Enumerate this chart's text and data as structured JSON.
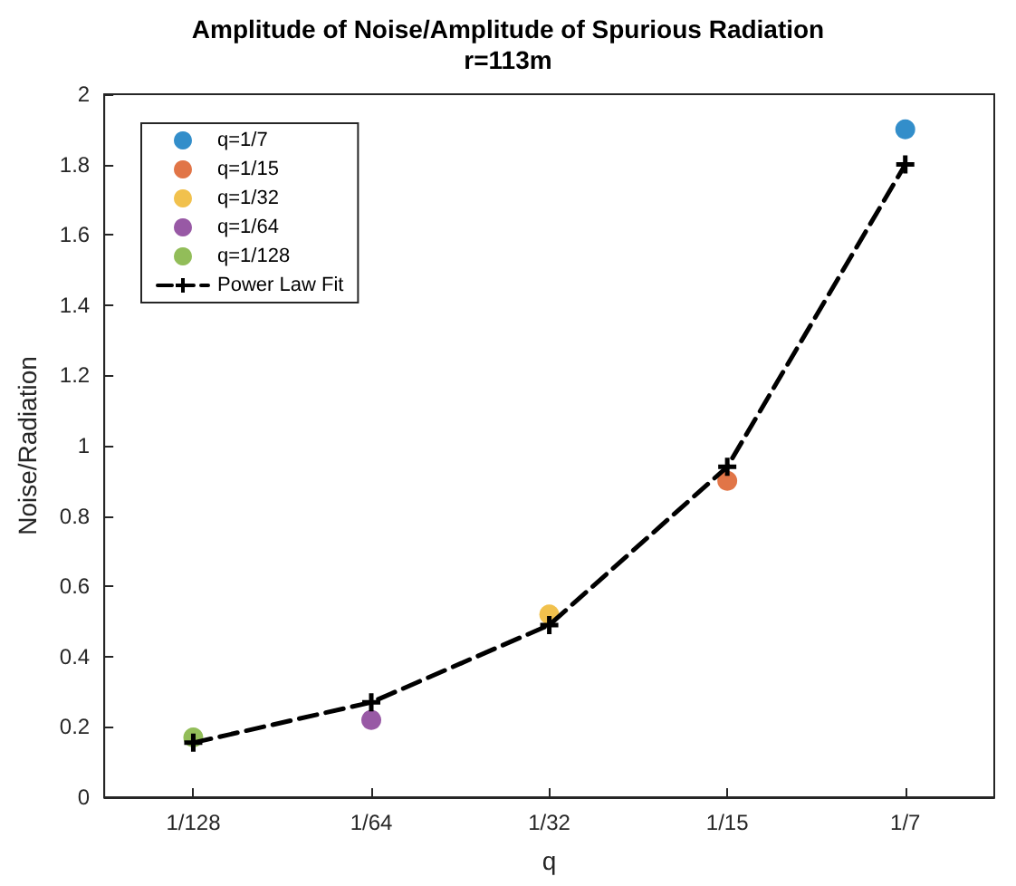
{
  "chart_data": {
    "type": "scatter",
    "title": "Amplitude of Noise/Amplitude of Spurious Radiation",
    "subtitle": "r=113m",
    "xlabel": "q",
    "ylabel": "Noise/Radiation",
    "categories": [
      "1/128",
      "1/64",
      "1/32",
      "1/15",
      "1/7"
    ],
    "series": [
      {
        "name": "q=1/7",
        "color": "#0072bd",
        "x": [
          "1/7"
        ],
        "values": [
          1.9
        ],
        "marker": "circle"
      },
      {
        "name": "q=1/15",
        "color": "#d95319",
        "x": [
          "1/15"
        ],
        "values": [
          0.9
        ],
        "marker": "circle"
      },
      {
        "name": "q=1/32",
        "color": "#edb120",
        "x": [
          "1/32"
        ],
        "values": [
          0.52
        ],
        "marker": "circle"
      },
      {
        "name": "q=1/64",
        "color": "#7e2f8e",
        "x": [
          "1/64"
        ],
        "values": [
          0.22
        ],
        "marker": "circle"
      },
      {
        "name": "q=1/128",
        "color": "#77ac30",
        "x": [
          "1/128"
        ],
        "values": [
          0.17
        ],
        "marker": "circle"
      },
      {
        "name": "Power Law Fit",
        "type": "line",
        "color": "#000000",
        "x": [
          "1/128",
          "1/64",
          "1/32",
          "1/15",
          "1/7"
        ],
        "values": [
          0.155,
          0.27,
          0.49,
          0.94,
          1.8
        ],
        "marker": "cross",
        "line_style": "dashed"
      }
    ],
    "ylim": [
      0,
      2
    ],
    "yticks": [
      0,
      0.2,
      0.4,
      0.6,
      0.8,
      1,
      1.2,
      1.4,
      1.6,
      1.8,
      2
    ],
    "grid": false,
    "legend": "top left"
  }
}
